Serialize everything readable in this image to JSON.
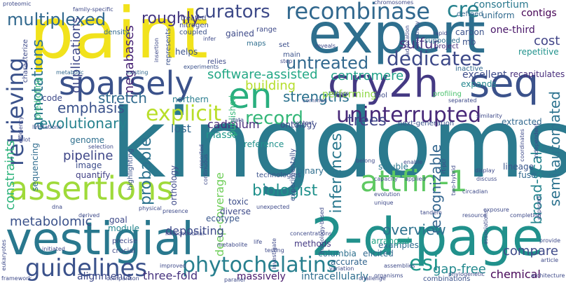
{
  "words": [
    {
      "text": "kingdoms",
      "color": "#2b7a8e"
    },
    {
      "text": "paint",
      "color": "#f1e21c"
    },
    {
      "text": "expert",
      "color": "#2e6f8e"
    },
    {
      "text": "2-d-page",
      "color": "#21918c"
    },
    {
      "text": "vestigial",
      "color": "#29788e"
    },
    {
      "text": "cry2h",
      "color": "#443983"
    },
    {
      "text": "seq",
      "color": "#3b528b"
    },
    {
      "text": "en",
      "color": "#29af7f"
    },
    {
      "text": "sparsely",
      "color": "#3b528b"
    },
    {
      "text": "assertions",
      "color": "#9fda3a"
    },
    {
      "text": "attfin-1",
      "color": "#5ec962"
    },
    {
      "text": "recombinase",
      "color": "#31688e"
    },
    {
      "text": "cre",
      "color": "#26828e"
    },
    {
      "text": "explicit",
      "color": "#b8de29"
    },
    {
      "text": "record",
      "color": "#35b779"
    },
    {
      "text": "uninterrupted",
      "color": "#482878"
    },
    {
      "text": "dedicates",
      "color": "#3e4a89"
    },
    {
      "text": "guidelines",
      "color": "#3b528b"
    },
    {
      "text": "phytochelatins",
      "color": "#277f8e"
    },
    {
      "text": "esi",
      "color": "#1f978b"
    },
    {
      "text": "multiplexed",
      "color": "#31688e"
    },
    {
      "text": "roughly",
      "color": "#453781"
    },
    {
      "text": "curators",
      "color": "#3e4a89"
    },
    {
      "text": "retrieving",
      "color": "#3b528b"
    },
    {
      "text": "annotations",
      "color": "#2c728e"
    },
    {
      "text": "megabases",
      "color": "#482475"
    },
    {
      "text": "duplications",
      "color": "#3e4989"
    },
    {
      "text": "untreated",
      "color": "#31688e"
    },
    {
      "text": "sulfur",
      "color": "#46337e"
    },
    {
      "text": "centromere",
      "color": "#1fa088"
    },
    {
      "text": "software-assisted",
      "color": "#22a785"
    },
    {
      "text": "building",
      "color": "#b5de2b"
    },
    {
      "text": "strengths",
      "color": "#2c728e"
    },
    {
      "text": "stretch",
      "color": "#306a8e"
    },
    {
      "text": "emphasis",
      "color": "#3b528b"
    },
    {
      "text": "evolutionary",
      "color": "#26828e"
    },
    {
      "text": "cadmium",
      "color": "#472c7a"
    },
    {
      "text": "lost",
      "color": "#31688e"
    },
    {
      "text": "masse",
      "color": "#1f998a"
    },
    {
      "text": "probable",
      "color": "#2c728e"
    },
    {
      "text": "trees",
      "color": "#404588"
    },
    {
      "text": "inferences",
      "color": "#2a788e"
    },
    {
      "text": "recognizable",
      "color": "#32658e"
    },
    {
      "text": "broad-scale",
      "color": "#25848e"
    },
    {
      "text": "semi-automated",
      "color": "#2c728e"
    },
    {
      "text": "overview",
      "color": "#2c718e"
    },
    {
      "text": "biologist",
      "color": "#21918c"
    },
    {
      "text": "pipeline",
      "color": "#3f4788"
    },
    {
      "text": "constraints",
      "color": "#2fb47c"
    },
    {
      "text": "metabolomic",
      "color": "#3b528b"
    },
    {
      "text": "deep-coverage",
      "color": "#6ece58"
    },
    {
      "text": "depositing",
      "color": "#3e4a89"
    },
    {
      "text": "three-fold",
      "color": "#46327e"
    },
    {
      "text": "gap-free",
      "color": "#23898e"
    },
    {
      "text": "compare",
      "color": "#3e4a89"
    },
    {
      "text": "chemical",
      "color": "#450457"
    },
    {
      "text": "cost",
      "color": "#414487"
    },
    {
      "text": "contigs",
      "color": "#440154"
    },
    {
      "text": "one-third",
      "color": "#481668"
    },
    {
      "text": "consortium",
      "color": "#2a788e"
    },
    {
      "text": "excellent",
      "color": "#3e4c8a"
    },
    {
      "text": "recapitulates",
      "color": "#472d7b"
    },
    {
      "text": "extracted",
      "color": "#31688e"
    },
    {
      "text": "columbia",
      "color": "#2d708e"
    },
    {
      "text": "accurate",
      "color": "#32658e"
    },
    {
      "text": "examples",
      "color": "#2f6c8e"
    },
    {
      "text": "arranged",
      "color": "#20a386"
    },
    {
      "text": "methods",
      "color": "#443983"
    },
    {
      "text": "elicited",
      "color": "#31688e"
    },
    {
      "text": "massively",
      "color": "#48186a"
    },
    {
      "text": "intracellularly",
      "color": "#2e6e8e"
    },
    {
      "text": "combinations",
      "color": "#3b528b"
    },
    {
      "text": "alignments",
      "color": "#3e4989"
    },
    {
      "text": "ecotype",
      "color": "#39568c"
    },
    {
      "text": "goal",
      "color": "#3e4a89"
    },
    {
      "text": "module",
      "color": "#25858e"
    },
    {
      "text": "genome",
      "color": "#2e6f8e"
    },
    {
      "text": "image",
      "color": "#3d4d8a"
    },
    {
      "text": "quantify",
      "color": "#424186"
    },
    {
      "text": "sequencing",
      "color": "#2f6c8e"
    },
    {
      "text": "ontology",
      "color": "#3e4a89"
    },
    {
      "text": "reference",
      "color": "#21918c"
    },
    {
      "text": "toxic",
      "color": "#3d4e8a"
    },
    {
      "text": "diverse",
      "color": "#3e4a89"
    },
    {
      "text": "binary",
      "color": "#2e6e8e"
    },
    {
      "text": "lineage",
      "color": "#39568c"
    },
    {
      "text": "soluble",
      "color": "#2a778e"
    },
    {
      "text": "fuse",
      "color": "#31688e"
    },
    {
      "text": "code",
      "color": "#3e4a89"
    },
    {
      "text": "performing",
      "color": "#8fd744"
    },
    {
      "text": "profiling",
      "color": "#4ac16d"
    },
    {
      "text": "northern",
      "color": "#287c8e"
    },
    {
      "text": "published",
      "color": "#35b779"
    },
    {
      "text": "inactive",
      "color": "#31688e"
    },
    {
      "text": "project",
      "color": "#472f7d"
    },
    {
      "text": "carbon",
      "color": "#3b528b"
    },
    {
      "text": "mb",
      "color": "#3b528b"
    },
    {
      "text": "uniform",
      "color": "#306a8e"
    },
    {
      "text": "defined",
      "color": "#31688e"
    },
    {
      "text": "repetitive",
      "color": "#20928c"
    },
    {
      "text": "supported",
      "color": "#2e6f8e"
    },
    {
      "text": "expands",
      "color": "#24878e"
    },
    {
      "text": "gained",
      "color": "#3e4a89"
    },
    {
      "text": "maps",
      "color": "#2e6e8e"
    },
    {
      "text": "set",
      "color": "#3c4f8a"
    },
    {
      "text": "main",
      "color": "#3b528b"
    },
    {
      "text": "helps",
      "color": "#3b528b"
    },
    {
      "text": "relies",
      "color": "#3e4a89"
    },
    {
      "text": "range",
      "color": "#3e4a89"
    },
    {
      "text": "density",
      "color": "#31688e"
    },
    {
      "text": "coupled",
      "color": "#3b528b"
    },
    {
      "text": "nitrogen",
      "color": "#3e4a89"
    },
    {
      "text": "represents",
      "color": "#3b528b"
    },
    {
      "text": "treated",
      "color": "#3e4a89"
    },
    {
      "text": "family-specific",
      "color": "#3e4989"
    },
    {
      "text": "proteomic",
      "color": "#3e4a89"
    },
    {
      "text": "characterize",
      "color": "#3e4a89"
    },
    {
      "text": "predicting",
      "color": "#35b779"
    },
    {
      "text": "metabolic",
      "color": "#31688e"
    },
    {
      "text": "existing",
      "color": "#31688e"
    },
    {
      "text": "insertion",
      "color": "#3e4a89"
    },
    {
      "text": "experiments",
      "color": "#3b528b"
    },
    {
      "text": "reveals",
      "color": "#3e4a89"
    },
    {
      "text": "chromosomes",
      "color": "#3e4a89"
    },
    {
      "text": "adaptation",
      "color": "#3e4a89"
    },
    {
      "text": "sensitivity",
      "color": "#3e4a89"
    },
    {
      "text": "tool",
      "color": "#3e4a89"
    },
    {
      "text": "share",
      "color": "#3e4a89"
    },
    {
      "text": "common",
      "color": "#3e4a89"
    },
    {
      "text": "context",
      "color": "#3e4a89"
    },
    {
      "text": "next-generation",
      "color": "#3b528b"
    },
    {
      "text": "similarity",
      "color": "#3e4a89"
    },
    {
      "text": "separated",
      "color": "#3e4a89"
    },
    {
      "text": "data",
      "color": "#3e4a89"
    },
    {
      "text": "limitations",
      "color": "#3e4a89"
    },
    {
      "text": "efficiency",
      "color": "#3e4a89"
    },
    {
      "text": "blot",
      "color": "#3e4a89"
    },
    {
      "text": "selection",
      "color": "#3e4a89"
    },
    {
      "text": "highlighting",
      "color": "#3b528b"
    },
    {
      "text": "physical",
      "color": "#3e4a89"
    },
    {
      "text": "continuous",
      "color": "#3e4a89"
    },
    {
      "text": "technologies",
      "color": "#3b528b"
    },
    {
      "text": "experimentally",
      "color": "#3b528b"
    },
    {
      "text": "belong",
      "color": "#3e4a89"
    },
    {
      "text": "enable",
      "color": "#3e4a89"
    },
    {
      "text": "capacity",
      "color": "#3e4a89"
    },
    {
      "text": "applied",
      "color": "#3e4a89"
    },
    {
      "text": "rt-pcr",
      "color": "#3e4a89"
    },
    {
      "text": "two-hybrid",
      "color": "#3e4a89"
    },
    {
      "text": "display",
      "color": "#3e4a89"
    },
    {
      "text": "discuss",
      "color": "#3e4a89"
    },
    {
      "text": "coordinates",
      "color": "#3e4a89"
    },
    {
      "text": "independent",
      "color": "#3e4a89"
    },
    {
      "text": "circadian",
      "color": "#3e4a89"
    },
    {
      "text": "evolution",
      "color": "#3e4a89"
    },
    {
      "text": "unique",
      "color": "#3e4a89"
    },
    {
      "text": "unexpected",
      "color": "#3e4a89"
    },
    {
      "text": "tandem",
      "color": "#3e4a89"
    },
    {
      "text": "exposure",
      "color": "#3e4a89"
    },
    {
      "text": "exposed",
      "color": "#3e4a89"
    },
    {
      "text": "completion",
      "color": "#3e4a89"
    },
    {
      "text": "resource",
      "color": "#3e4a89"
    },
    {
      "text": "provide",
      "color": "#3e4a89"
    },
    {
      "text": "article",
      "color": "#3e4a89"
    },
    {
      "text": "architecture",
      "color": "#3e4a89"
    },
    {
      "text": "phylogenetic",
      "color": "#3e4a89"
    },
    {
      "text": "associations",
      "color": "#3e4a89"
    },
    {
      "text": "homology-based",
      "color": "#3e4a89"
    },
    {
      "text": "concentrations",
      "color": "#3e4a89"
    },
    {
      "text": "assemblies",
      "color": "#3e4a89"
    },
    {
      "text": "organisms",
      "color": "#3e4a89"
    },
    {
      "text": "variation",
      "color": "#3e4a89"
    },
    {
      "text": "testing",
      "color": "#3e4a89"
    },
    {
      "text": "investigate",
      "color": "#3e4a89"
    },
    {
      "text": "metabolite",
      "color": "#3e4a89"
    },
    {
      "text": "life",
      "color": "#3e4a89"
    },
    {
      "text": "mitochondrial",
      "color": "#3e4a89"
    },
    {
      "text": "presence",
      "color": "#3e4a89"
    },
    {
      "text": "derived",
      "color": "#3e4a89"
    },
    {
      "text": "dna",
      "color": "#3e4a89"
    },
    {
      "text": "precise",
      "color": "#3e4a89"
    },
    {
      "text": "crucial",
      "color": "#3e4a89"
    },
    {
      "text": "initiated",
      "color": "#3e4a89"
    },
    {
      "text": "eukaryotes",
      "color": "#3e4a89"
    },
    {
      "text": "framework",
      "color": "#3e4a89"
    },
    {
      "text": "improved",
      "color": "#3e4a89"
    },
    {
      "text": "comparison",
      "color": "#3e4a89"
    },
    {
      "text": "parallel",
      "color": "#3e4a89"
    },
    {
      "text": "challenge",
      "color": "#3e4a89"
    },
    {
      "text": "orthology",
      "color": "#3e4a89"
    },
    {
      "text": "infer",
      "color": "#3e4a89"
    },
    {
      "text": "reported",
      "color": "#3e4a89"
    },
    {
      "text": "step",
      "color": "#3e4a89"
    },
    {
      "text": "rapid",
      "color": "#3e4a89"
    }
  ]
}
